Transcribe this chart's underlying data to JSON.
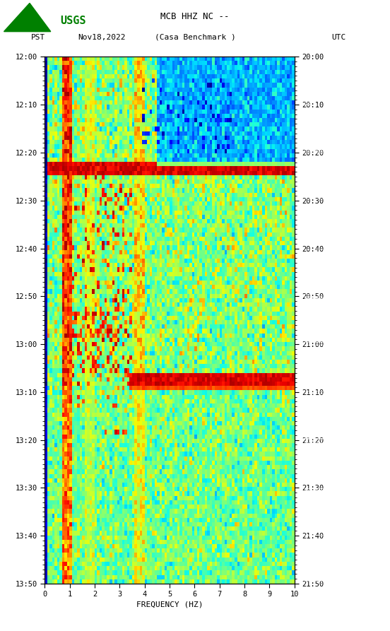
{
  "title_line1": "MCB HHZ NC --",
  "title_line2": "(Casa Benchmark )",
  "left_label": "PST",
  "date_label": "Nov18,2022",
  "right_label": "UTC",
  "xlabel": "FREQUENCY (HZ)",
  "freq_min": 0,
  "freq_max": 10,
  "freq_ticks": [
    0,
    1,
    2,
    3,
    4,
    5,
    6,
    7,
    8,
    9,
    10
  ],
  "time_left_labels": [
    "12:00",
    "12:10",
    "12:20",
    "12:30",
    "12:40",
    "12:50",
    "13:00",
    "13:10",
    "13:20",
    "13:30",
    "13:40",
    "13:50"
  ],
  "time_right_labels": [
    "20:00",
    "20:10",
    "20:20",
    "20:30",
    "20:40",
    "20:50",
    "21:00",
    "21:10",
    "21:20",
    "21:30",
    "21:40",
    "21:50"
  ],
  "n_time_rows": 120,
  "n_freq_cols": 100,
  "bg_color": "#ffffff",
  "colormap": "jet",
  "fig_width": 5.52,
  "fig_height": 8.93,
  "dpi": 100
}
